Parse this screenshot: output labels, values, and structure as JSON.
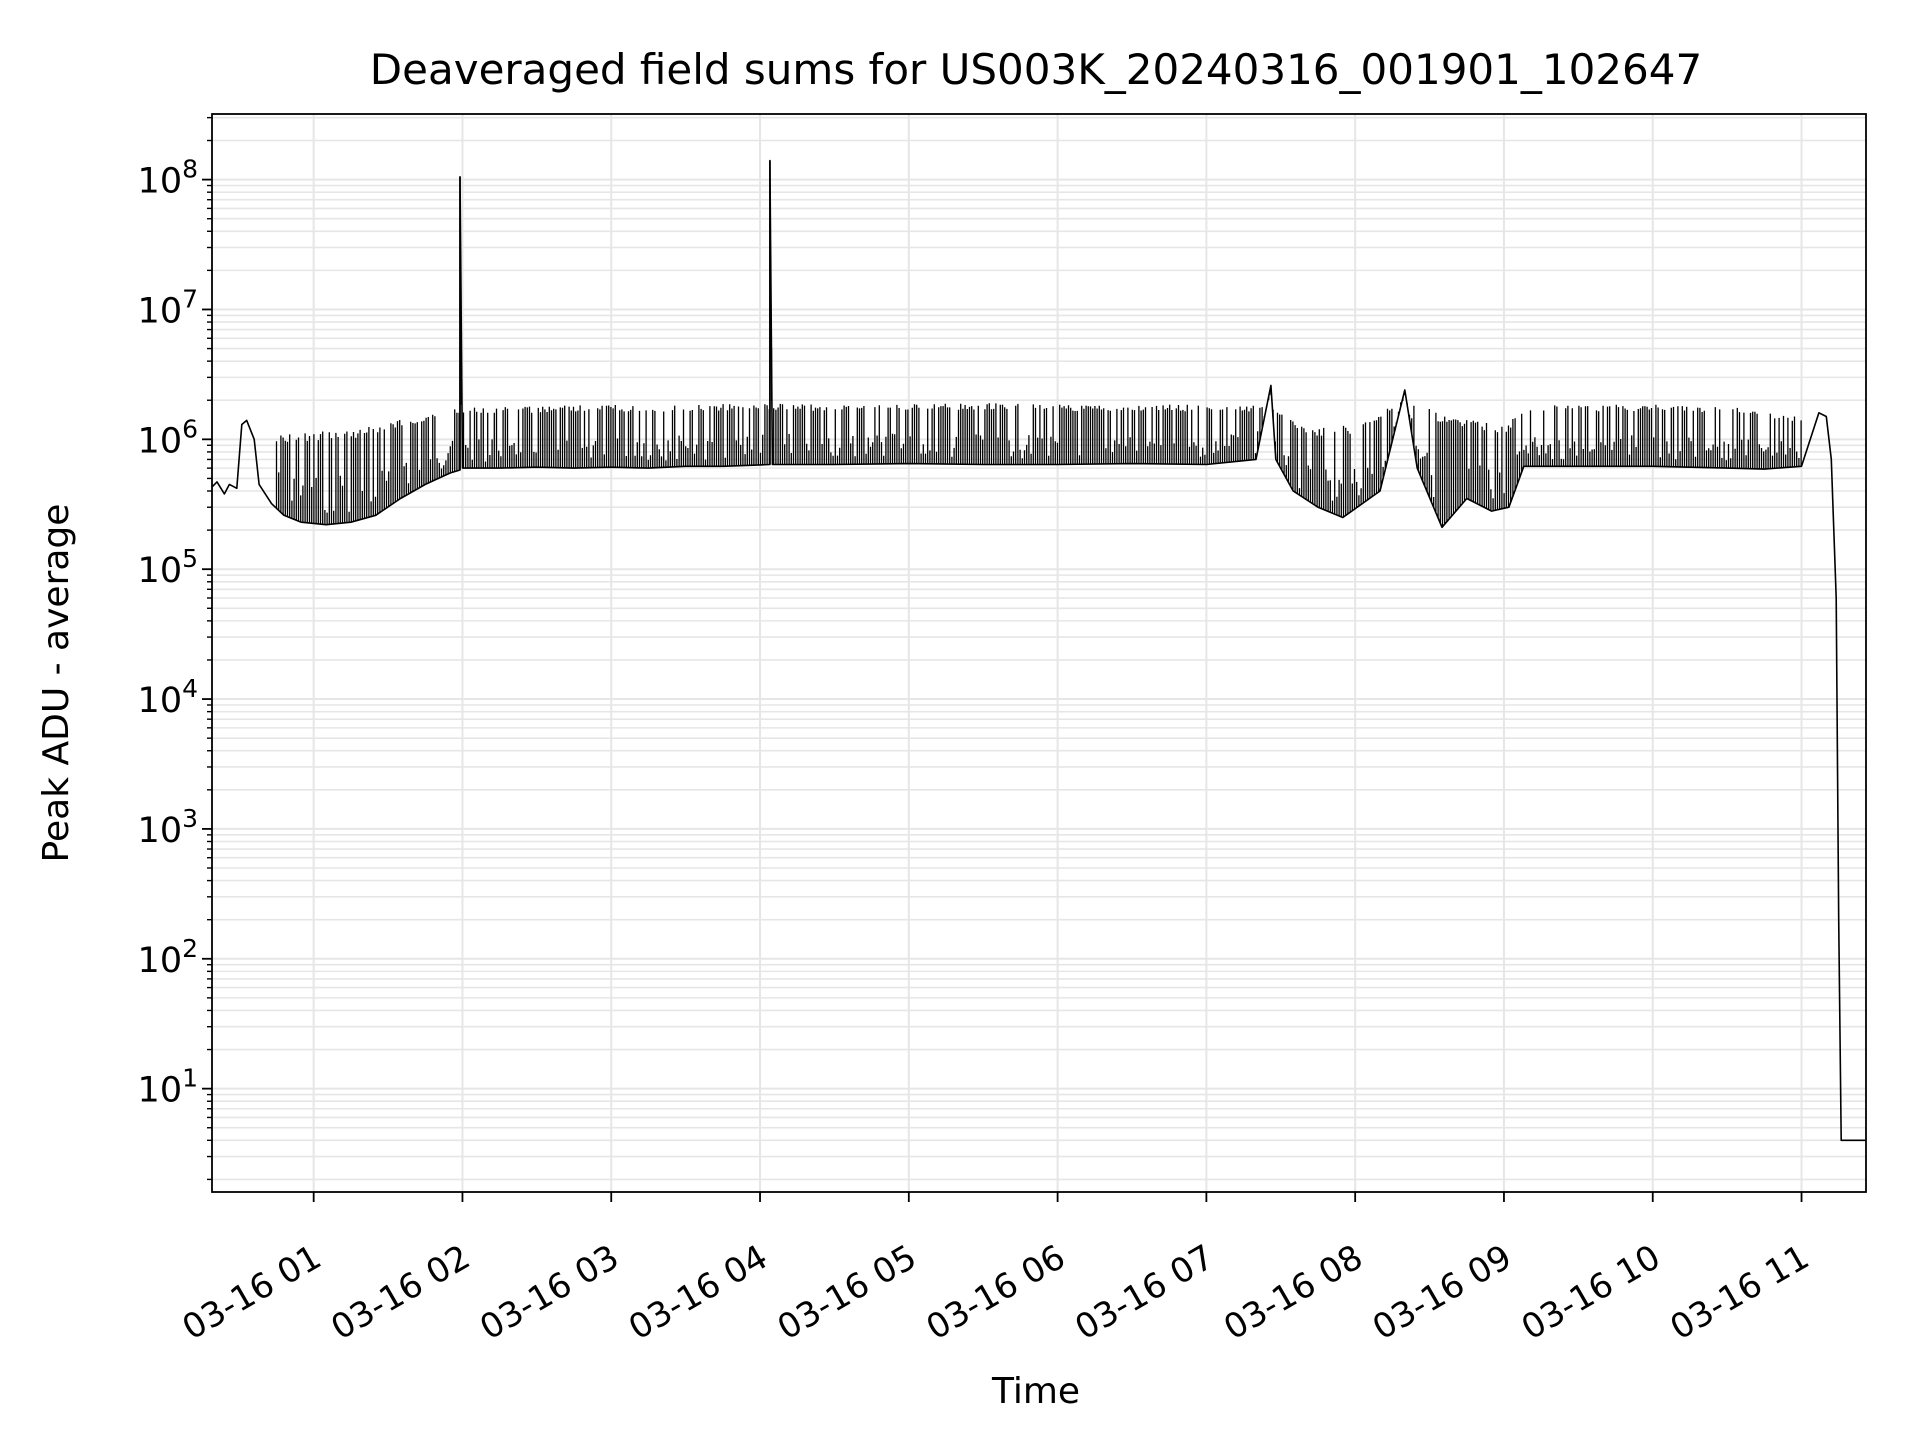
{
  "chart_data": {
    "type": "line",
    "title": "Deaveraged field sums for US003K_20240316_001901_102647",
    "xlabel": "Time",
    "ylabel": "Peak ADU - average",
    "yscale": "log",
    "grid": true,
    "line_color": "#000000",
    "grid_color": "#e6e6e6",
    "xlim": [
      "2024-03-16 00:19",
      "2024-03-16 11:26"
    ],
    "ylim": [
      1.6,
      320000000
    ],
    "x_ticks": [
      {
        "time": "2024-03-16 01:00",
        "label": "03-16 01"
      },
      {
        "time": "2024-03-16 02:00",
        "label": "03-16 02"
      },
      {
        "time": "2024-03-16 03:00",
        "label": "03-16 03"
      },
      {
        "time": "2024-03-16 04:00",
        "label": "03-16 04"
      },
      {
        "time": "2024-03-16 05:00",
        "label": "03-16 05"
      },
      {
        "time": "2024-03-16 06:00",
        "label": "03-16 06"
      },
      {
        "time": "2024-03-16 07:00",
        "label": "03-16 07"
      },
      {
        "time": "2024-03-16 08:00",
        "label": "03-16 08"
      },
      {
        "time": "2024-03-16 09:00",
        "label": "03-16 09"
      },
      {
        "time": "2024-03-16 10:00",
        "label": "03-16 10"
      },
      {
        "time": "2024-03-16 11:00",
        "label": "03-16 11"
      }
    ],
    "y_ticks": [
      {
        "value": 10,
        "base": "10",
        "exp": "1"
      },
      {
        "value": 100,
        "base": "10",
        "exp": "2"
      },
      {
        "value": 1000,
        "base": "10",
        "exp": "3"
      },
      {
        "value": 10000,
        "base": "10",
        "exp": "4"
      },
      {
        "value": 100000,
        "base": "10",
        "exp": "5"
      },
      {
        "value": 1000000,
        "base": "10",
        "exp": "6"
      },
      {
        "value": 10000000,
        "base": "10",
        "exp": "7"
      },
      {
        "value": 100000000,
        "base": "10",
        "exp": "8"
      }
    ],
    "series": [
      {
        "points": [
          [
            "2024-03-16 00:19",
            430000
          ],
          [
            "2024-03-16 00:21",
            470000
          ],
          [
            "2024-03-16 00:24",
            380000
          ],
          [
            "2024-03-16 00:26",
            450000
          ],
          [
            "2024-03-16 00:29",
            420000
          ],
          [
            "2024-03-16 00:31",
            1300000
          ],
          [
            "2024-03-16 00:33",
            1400000
          ],
          [
            "2024-03-16 00:36",
            1000000
          ],
          [
            "2024-03-16 00:38",
            450000
          ],
          [
            "2024-03-16 00:43",
            320000
          ],
          [
            "2024-03-16 00:48",
            260000
          ],
          [
            "2024-03-16 00:55",
            230000
          ],
          [
            "2024-03-16 01:05",
            220000
          ],
          [
            "2024-03-16 01:15",
            230000
          ],
          [
            "2024-03-16 01:25",
            260000
          ],
          [
            "2024-03-16 01:35",
            350000
          ],
          [
            "2024-03-16 01:45",
            450000
          ],
          [
            "2024-03-16 01:55",
            550000
          ],
          [
            "2024-03-16 01:59",
            580000
          ],
          [
            "2024-03-16 01:59",
            105000000
          ],
          [
            "2024-03-16 02:00",
            600000
          ],
          [
            "2024-03-16 02:15",
            600000
          ],
          [
            "2024-03-16 02:30",
            610000
          ],
          [
            "2024-03-16 02:45",
            600000
          ],
          [
            "2024-03-16 03:00",
            610000
          ],
          [
            "2024-03-16 03:15",
            600000
          ],
          [
            "2024-03-16 03:30",
            620000
          ],
          [
            "2024-03-16 03:45",
            620000
          ],
          [
            "2024-03-16 04:04",
            640000
          ],
          [
            "2024-03-16 04:04",
            140000000
          ],
          [
            "2024-03-16 04:05",
            640000
          ],
          [
            "2024-03-16 04:30",
            640000
          ],
          [
            "2024-03-16 05:00",
            650000
          ],
          [
            "2024-03-16 05:30",
            640000
          ],
          [
            "2024-03-16 06:00",
            640000
          ],
          [
            "2024-03-16 06:30",
            650000
          ],
          [
            "2024-03-16 07:00",
            640000
          ],
          [
            "2024-03-16 07:20",
            700000
          ],
          [
            "2024-03-16 07:26",
            2600000
          ],
          [
            "2024-03-16 07:28",
            700000
          ],
          [
            "2024-03-16 07:35",
            400000
          ],
          [
            "2024-03-16 07:45",
            300000
          ],
          [
            "2024-03-16 07:55",
            250000
          ],
          [
            "2024-03-16 08:10",
            400000
          ],
          [
            "2024-03-16 08:20",
            2400000
          ],
          [
            "2024-03-16 08:25",
            600000
          ],
          [
            "2024-03-16 08:35",
            210000
          ],
          [
            "2024-03-16 08:45",
            350000
          ],
          [
            "2024-03-16 08:55",
            280000
          ],
          [
            "2024-03-16 09:02",
            300000
          ],
          [
            "2024-03-16 09:08",
            620000
          ],
          [
            "2024-03-16 09:30",
            620000
          ],
          [
            "2024-03-16 10:00",
            620000
          ],
          [
            "2024-03-16 10:30",
            600000
          ],
          [
            "2024-03-16 10:45",
            590000
          ],
          [
            "2024-03-16 11:00",
            620000
          ],
          [
            "2024-03-16 11:07",
            1600000
          ],
          [
            "2024-03-16 11:10",
            1500000
          ],
          [
            "2024-03-16 11:12",
            700000
          ],
          [
            "2024-03-16 11:14",
            60000
          ],
          [
            "2024-03-16 11:15",
            200
          ],
          [
            "2024-03-16 11:16",
            4
          ],
          [
            "2024-03-16 11:26",
            4
          ]
        ],
        "band_upper": [
          [
            "2024-03-16 00:45",
            1100000
          ],
          [
            "2024-03-16 01:00",
            1150000
          ],
          [
            "2024-03-16 01:20",
            1250000
          ],
          [
            "2024-03-16 01:40",
            1500000
          ],
          [
            "2024-03-16 02:00",
            1750000
          ],
          [
            "2024-03-16 02:30",
            1800000
          ],
          [
            "2024-03-16 03:00",
            1850000
          ],
          [
            "2024-03-16 03:30",
            1850000
          ],
          [
            "2024-03-16 04:00",
            1900000
          ],
          [
            "2024-03-16 04:30",
            1850000
          ],
          [
            "2024-03-16 05:00",
            1900000
          ],
          [
            "2024-03-16 05:30",
            1900000
          ],
          [
            "2024-03-16 06:00",
            1850000
          ],
          [
            "2024-03-16 06:30",
            1850000
          ],
          [
            "2024-03-16 07:00",
            1850000
          ],
          [
            "2024-03-16 07:25",
            1800000
          ],
          [
            "2024-03-16 07:40",
            1200000
          ],
          [
            "2024-03-16 08:00",
            1300000
          ],
          [
            "2024-03-16 08:20",
            2000000
          ],
          [
            "2024-03-16 08:40",
            1500000
          ],
          [
            "2024-03-16 09:00",
            1300000
          ],
          [
            "2024-03-16 09:10",
            1800000
          ],
          [
            "2024-03-16 09:30",
            1850000
          ],
          [
            "2024-03-16 10:00",
            1850000
          ],
          [
            "2024-03-16 10:30",
            1800000
          ],
          [
            "2024-03-16 11:00",
            1500000
          ]
        ],
        "spikes": [
          [
            "2024-03-16 01:59",
            105000000
          ],
          [
            "2024-03-16 04:04",
            140000000
          ]
        ]
      }
    ]
  }
}
